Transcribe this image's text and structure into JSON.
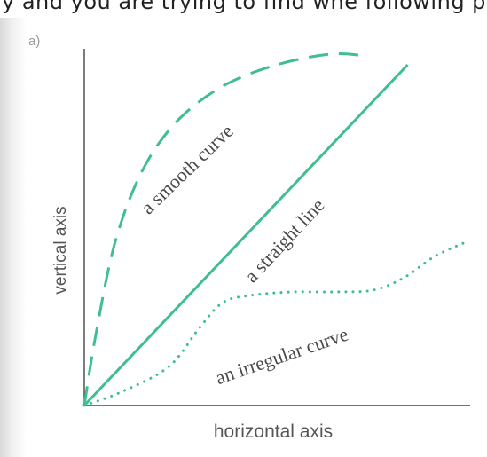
{
  "top_cropped_text": "y and you are trying to find whe following p",
  "part_label": "a)",
  "chart_data": {
    "type": "line",
    "title": "",
    "xlabel": "horizontal axis",
    "ylabel": "vertical axis",
    "xlim": [
      0,
      10
    ],
    "ylim": [
      0,
      10
    ],
    "grid": false,
    "legend": "none",
    "series": [
      {
        "name": "a straight line",
        "style": "solid",
        "color": "#3fbf8f",
        "x": [
          0,
          8.4
        ],
        "y": [
          0,
          9.6
        ]
      },
      {
        "name": "a smooth curve",
        "style": "dashed",
        "color": "#3fbf8f",
        "x": [
          0,
          0.3,
          0.8,
          1.5,
          2.4,
          3.6,
          5.0,
          6.4,
          7.3
        ],
        "y": [
          0,
          2.0,
          4.6,
          6.6,
          8.0,
          9.0,
          9.6,
          9.9,
          9.85
        ]
      },
      {
        "name": "an irregular curve",
        "style": "dotted",
        "color": "#3fbf8f",
        "x": [
          0,
          1.0,
          2.2,
          3.0,
          3.6,
          4.3,
          5.4,
          6.5,
          7.5,
          8.3,
          9.1,
          9.9
        ],
        "y": [
          0,
          0.4,
          1.1,
          2.2,
          2.9,
          3.1,
          3.2,
          3.2,
          3.25,
          3.6,
          4.2,
          4.6
        ]
      }
    ]
  }
}
